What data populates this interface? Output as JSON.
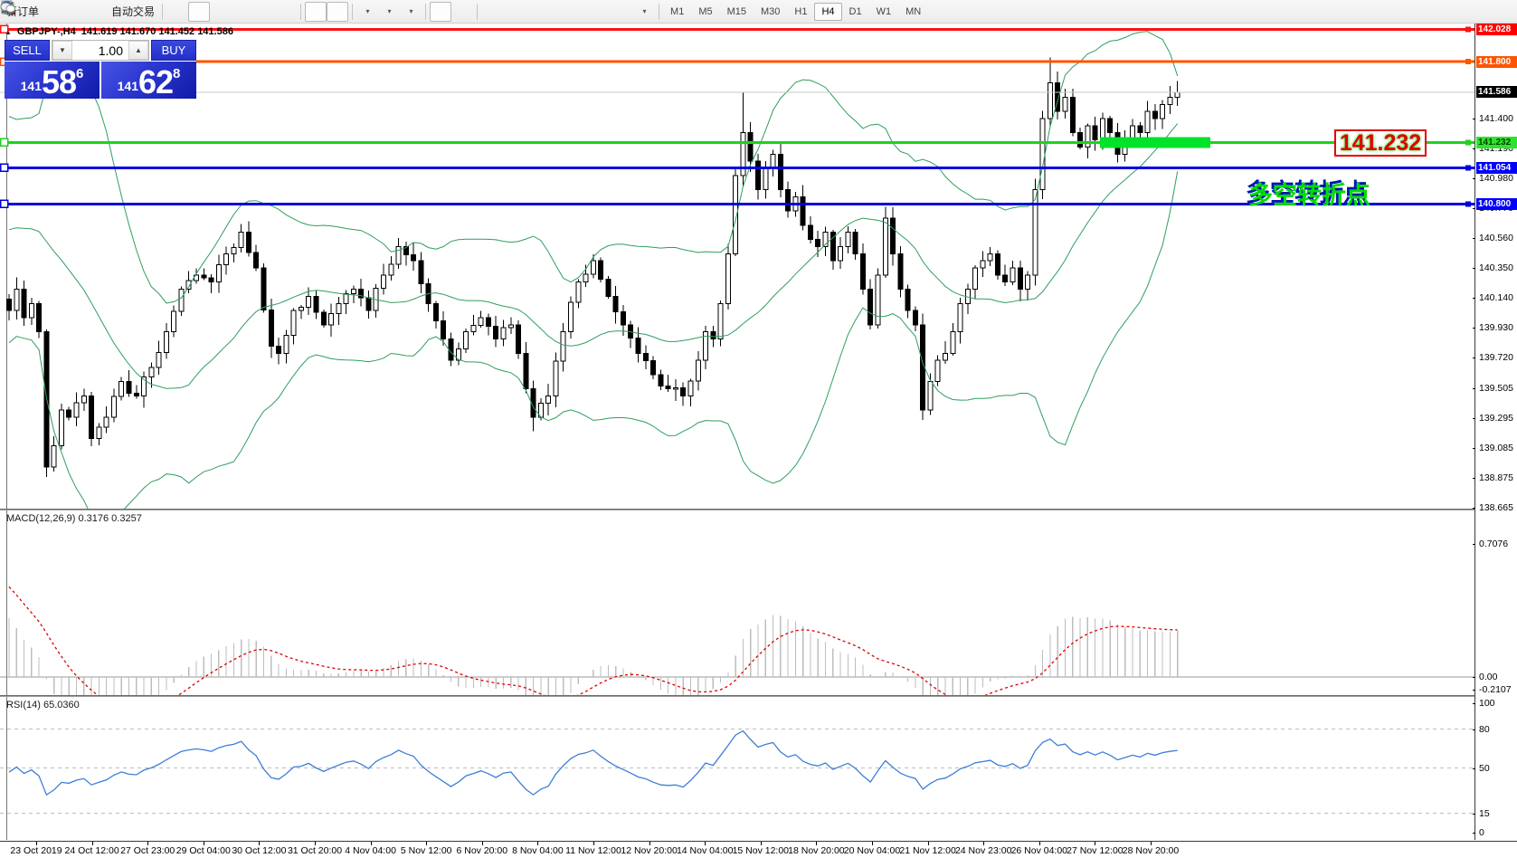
{
  "toolbar": {
    "items": [
      {
        "type": "btn",
        "name": "new-order-button",
        "icon": "new-order",
        "label": "新订单"
      },
      {
        "type": "btn",
        "name": "market-watch-button",
        "icon": "market"
      },
      {
        "type": "btn",
        "name": "data-folder-button",
        "icon": "tester"
      },
      {
        "type": "btn",
        "name": "signals-button",
        "icon": "signals"
      },
      {
        "type": "btn",
        "name": "auto-trading-button",
        "icon": "autotrade",
        "label": "自动交易"
      },
      {
        "type": "sep"
      },
      {
        "type": "btn",
        "name": "bar-chart-mode-button",
        "icon": "bars"
      },
      {
        "type": "btn",
        "name": "candlestick-mode-button",
        "icon": "candles",
        "active": true
      },
      {
        "type": "btn",
        "name": "line-chart-mode-button",
        "icon": "line"
      },
      {
        "type": "btn",
        "name": "zoom-in-button",
        "icon": "zoom-in"
      },
      {
        "type": "btn",
        "name": "zoom-out-button",
        "icon": "zoom-out"
      },
      {
        "type": "btn",
        "name": "tile-windows-button",
        "icon": "tile"
      },
      {
        "type": "sep"
      },
      {
        "type": "btn",
        "name": "auto-scroll-button",
        "icon": "autoscroll",
        "active": true
      },
      {
        "type": "btn",
        "name": "chart-shift-button",
        "icon": "shift",
        "active": true
      },
      {
        "type": "sep"
      },
      {
        "type": "btn",
        "name": "indicators-button",
        "icon": "indicators",
        "dropdown": true
      },
      {
        "type": "btn",
        "name": "periods-button",
        "icon": "periods",
        "dropdown": true
      },
      {
        "type": "btn",
        "name": "templates-button",
        "icon": "templates",
        "dropdown": true
      },
      {
        "type": "sep"
      },
      {
        "type": "btn",
        "name": "cursor-tool-button",
        "icon": "cursor",
        "active": true
      },
      {
        "type": "btn",
        "name": "crosshair-tool-button",
        "icon": "crosshair"
      },
      {
        "type": "sep"
      },
      {
        "type": "btn",
        "name": "vertical-line-tool-button",
        "icon": "vline"
      },
      {
        "type": "btn",
        "name": "horizontal-line-tool-button",
        "icon": "hline"
      },
      {
        "type": "btn",
        "name": "trendline-tool-button",
        "icon": "trendline"
      },
      {
        "type": "btn",
        "name": "channel-tool-button",
        "icon": "channel"
      },
      {
        "type": "btn",
        "name": "fibonacci-tool-button",
        "icon": "fibo"
      },
      {
        "type": "btn",
        "name": "text-tool-button",
        "icon": "text-a"
      },
      {
        "type": "btn",
        "name": "label-tool-button",
        "icon": "text-label"
      },
      {
        "type": "btn",
        "name": "arrow-shapes-button",
        "icon": "arrows",
        "dropdown": true
      },
      {
        "type": "sep"
      }
    ],
    "timeframes": [
      "M1",
      "M5",
      "M15",
      "M30",
      "H1",
      "H4",
      "D1",
      "W1",
      "MN"
    ],
    "active_timeframe": "H4",
    "right_icons": [
      {
        "name": "search-icon",
        "icon": "search"
      },
      {
        "name": "chat-icon",
        "icon": "chat"
      }
    ]
  },
  "chart": {
    "title": {
      "symbol": "GBPJPY-,H4",
      "ohlc": "141.619 141.670 141.452 141.586"
    },
    "trade_panel": {
      "sell_label": "SELL",
      "buy_label": "BUY",
      "volume": "1.00",
      "sell_price": {
        "small": "141",
        "big": "58",
        "sup": "6"
      },
      "buy_price": {
        "small": "141",
        "big": "62",
        "sup": "8"
      }
    },
    "annotations": {
      "price_box_text": "141.232",
      "cn_text": "多空转折点"
    }
  },
  "macd_panel": {
    "label": "MACD(12,26,9) 0.3176 0.3257"
  },
  "rsi_panel": {
    "label": "RSI(14) 65.0360"
  },
  "chart_data": {
    "type": "candlestick",
    "symbol": "GBPJPY-",
    "timeframe": "H4",
    "ohlc_display": {
      "open": "141.619",
      "high": "141.670",
      "low": "141.452",
      "close": "141.586"
    },
    "bid": "141.586",
    "ask": "141.628",
    "price_ticks": [
      141.4,
      141.19,
      140.98,
      140.77,
      140.56,
      140.35,
      140.14,
      139.93,
      139.72,
      139.505,
      139.295,
      139.085,
      138.875,
      138.665
    ],
    "hlines": [
      {
        "price": 142.028,
        "label": "142.028",
        "color": "#ff1212",
        "label_bg": "#ff0000",
        "label_fg": "#ffffff",
        "width": 3
      },
      {
        "price": 141.8,
        "label": "141.800",
        "color": "#ff5400",
        "label_bg": "#ff5400",
        "label_fg": "#ffffff",
        "width": 3
      },
      {
        "price": 141.586,
        "label": "141.586",
        "color": "#c8c8c8",
        "label_bg": "#000000",
        "label_fg": "#ffffff",
        "width": 1,
        "current": true
      },
      {
        "price": 141.232,
        "label": "141.232",
        "color": "#1fd11f",
        "label_bg": "#2ee52e",
        "label_fg": "#004000",
        "width": 3
      },
      {
        "price": 141.054,
        "label": "141.054",
        "color": "#0000e0",
        "label_bg": "#0000ff",
        "label_fg": "#ffffff",
        "width": 3
      },
      {
        "price": 140.8,
        "label": "140.800",
        "color": "#0000e0",
        "label_bg": "#0000ff",
        "label_fg": "#ffffff",
        "width": 3
      }
    ],
    "highlight_zone": {
      "price": 141.232,
      "from_index": 146,
      "to_index": 160,
      "color": "#00e32a",
      "thickness": 12
    },
    "close_anchors": [
      [
        0,
        140.05
      ],
      [
        1,
        140.2
      ],
      [
        2,
        140.0
      ],
      [
        3,
        140.1
      ],
      [
        4,
        139.9
      ],
      [
        5,
        138.95
      ],
      [
        6,
        139.1
      ],
      [
        7,
        139.35
      ],
      [
        8,
        139.3
      ],
      [
        10,
        139.45
      ],
      [
        11,
        139.15
      ],
      [
        13,
        139.3
      ],
      [
        15,
        139.55
      ],
      [
        17,
        139.45
      ],
      [
        19,
        139.65
      ],
      [
        21,
        139.9
      ],
      [
        23,
        140.2
      ],
      [
        25,
        140.3
      ],
      [
        27,
        140.25
      ],
      [
        29,
        140.45
      ],
      [
        31,
        140.6
      ],
      [
        33,
        140.35
      ],
      [
        35,
        139.8
      ],
      [
        36,
        139.75
      ],
      [
        38,
        140.05
      ],
      [
        40,
        140.15
      ],
      [
        42,
        139.95
      ],
      [
        44,
        140.1
      ],
      [
        46,
        140.2
      ],
      [
        48,
        140.05
      ],
      [
        50,
        140.3
      ],
      [
        52,
        140.5
      ],
      [
        54,
        140.4
      ],
      [
        56,
        140.1
      ],
      [
        58,
        139.85
      ],
      [
        59,
        139.7
      ],
      [
        61,
        139.9
      ],
      [
        63,
        140.0
      ],
      [
        65,
        139.85
      ],
      [
        67,
        139.95
      ],
      [
        69,
        139.5
      ],
      [
        70,
        139.3
      ],
      [
        72,
        139.45
      ],
      [
        74,
        139.9
      ],
      [
        76,
        140.25
      ],
      [
        78,
        140.4
      ],
      [
        80,
        140.15
      ],
      [
        82,
        139.95
      ],
      [
        84,
        139.75
      ],
      [
        86,
        139.6
      ],
      [
        88,
        139.5
      ],
      [
        90,
        139.45
      ],
      [
        92,
        139.7
      ],
      [
        93,
        139.9
      ],
      [
        94,
        139.85
      ],
      [
        95,
        140.1
      ],
      [
        96,
        140.45
      ],
      [
        97,
        141.0
      ],
      [
        98,
        141.3
      ],
      [
        99,
        141.1
      ],
      [
        100,
        140.9
      ],
      [
        101,
        141.05
      ],
      [
        102,
        141.15
      ],
      [
        103,
        140.9
      ],
      [
        104,
        140.75
      ],
      [
        105,
        140.85
      ],
      [
        106,
        140.65
      ],
      [
        107,
        140.55
      ],
      [
        108,
        140.5
      ],
      [
        109,
        140.6
      ],
      [
        110,
        140.4
      ],
      [
        111,
        140.5
      ],
      [
        112,
        140.6
      ],
      [
        113,
        140.45
      ],
      [
        114,
        140.2
      ],
      [
        115,
        139.95
      ],
      [
        116,
        140.3
      ],
      [
        117,
        140.7
      ],
      [
        118,
        140.45
      ],
      [
        119,
        140.2
      ],
      [
        120,
        140.05
      ],
      [
        121,
        139.95
      ],
      [
        122,
        139.35
      ],
      [
        123,
        139.55
      ],
      [
        124,
        139.7
      ],
      [
        125,
        139.75
      ],
      [
        126,
        139.9
      ],
      [
        127,
        140.1
      ],
      [
        128,
        140.2
      ],
      [
        129,
        140.35
      ],
      [
        130,
        140.4
      ],
      [
        131,
        140.45
      ],
      [
        132,
        140.3
      ],
      [
        133,
        140.25
      ],
      [
        134,
        140.35
      ],
      [
        135,
        140.2
      ],
      [
        136,
        140.3
      ],
      [
        137,
        140.9
      ],
      [
        138,
        141.4
      ],
      [
        139,
        141.65
      ],
      [
        140,
        141.45
      ],
      [
        141,
        141.55
      ],
      [
        142,
        141.3
      ],
      [
        143,
        141.2
      ],
      [
        144,
        141.35
      ],
      [
        145,
        141.25
      ],
      [
        146,
        141.4
      ],
      [
        147,
        141.3
      ],
      [
        148,
        141.15
      ],
      [
        149,
        141.25
      ],
      [
        150,
        141.35
      ],
      [
        151,
        141.3
      ],
      [
        152,
        141.45
      ],
      [
        153,
        141.4
      ],
      [
        154,
        141.5
      ],
      [
        155,
        141.55
      ],
      [
        156,
        141.586
      ]
    ],
    "wick_overrides": {
      "5": {
        "low": 138.88
      },
      "31": {
        "high": 140.66
      },
      "52": {
        "high": 140.56
      },
      "70": {
        "low": 139.2
      },
      "90": {
        "low": 139.38
      },
      "98": {
        "high": 141.58
      },
      "117": {
        "high": 140.78
      },
      "122": {
        "low": 139.28
      },
      "139": {
        "high": 141.83
      }
    },
    "indicators": {
      "bollinger": {
        "period": 20,
        "deviation": 2,
        "color": "#2f9e5f"
      },
      "macd": {
        "fast": 12,
        "slow": 26,
        "signal": 9,
        "value": 0.3176,
        "signal_value": 0.3257,
        "scale_labels": [
          "0.7076",
          "0.00",
          "-0.2107"
        ],
        "scale_values": [
          0.7076,
          0,
          -0.2107
        ],
        "histogram_color": "#bdbdbd",
        "signal_color": "#e00000"
      },
      "rsi": {
        "period": 14,
        "value": 65.036,
        "levels": [
          80,
          50,
          15
        ],
        "scale_labels": [
          "100",
          "80",
          "50",
          "15",
          "0"
        ],
        "scale_values": [
          100,
          80,
          50,
          15,
          0
        ],
        "color": "#3d7fd6"
      }
    },
    "time_labels": [
      "23 Oct 2019",
      "24 Oct 12:00",
      "27 Oct 23:00",
      "29 Oct 04:00",
      "30 Oct 12:00",
      "31 Oct 20:00",
      "4 Nov 04:00",
      "5 Nov 12:00",
      "6 Nov 20:00",
      "8 Nov 04:00",
      "11 Nov 12:00",
      "12 Nov 20:00",
      "14 Nov 04:00",
      "15 Nov 12:00",
      "18 Nov 20:00",
      "20 Nov 04:00",
      "21 Nov 12:00",
      "24 Nov 23:00",
      "26 Nov 04:00",
      "27 Nov 12:00",
      "28 Nov 20:00"
    ]
  }
}
